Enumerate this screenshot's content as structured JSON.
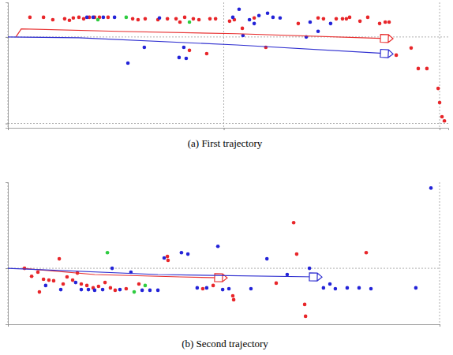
{
  "chart_data": [
    {
      "type": "scatter",
      "title": "(a) First trajectory",
      "xlim": [
        0,
        20.4
      ],
      "ylim": [
        -4.2,
        1.6
      ],
      "xticks": [
        0,
        10,
        20
      ],
      "yticks": [
        -4,
        0
      ],
      "grid": true,
      "tick_labels": false,
      "series": [
        {
          "type": "scatter",
          "color": "#e8262a",
          "marker": "circle",
          "x": [
            1.02,
            1.65,
            2.08,
            2.63,
            2.85,
            3.03,
            3.29,
            3.51,
            3.77,
            4.02,
            4.24,
            4.64,
            5.78,
            6.03,
            6.36,
            6.95,
            7.39,
            7.79,
            7.97,
            8.19,
            8.59,
            8.85,
            9.36,
            9.62,
            10.27,
            10.49,
            10.86,
            11.41,
            11.95,
            13.45,
            14.37,
            14.62,
            15.21,
            15.5,
            15.68,
            15.83,
            16.31,
            16.67,
            17.22,
            17.48,
            17.66,
            17.99,
            18.68,
            19.01,
            19.41,
            19.93,
            20.0,
            20.11,
            20.22,
            9.21,
            8.41
          ],
          "values": [
            0.91,
            0.91,
            0.8,
            0.84,
            0.77,
            0.88,
            0.91,
            0.84,
            0.91,
            0.91,
            0.91,
            0.91,
            0.84,
            0.8,
            0.84,
            0.8,
            0.84,
            0.84,
            0.69,
            0.91,
            0.84,
            0.8,
            0.84,
            0.84,
            0.73,
            0.8,
            0.4,
            0.88,
            -0.48,
            0.62,
            0.88,
            0.84,
            0.84,
            0.84,
            0.84,
            0.91,
            0.73,
            0.91,
            0.62,
            0.69,
            0.69,
            -0.84,
            -0.51,
            -1.46,
            -1.46,
            -2.38,
            -3.03,
            -3.69,
            -3.88,
            -0.77,
            -0.62
          ]
        },
        {
          "type": "scatter",
          "color": "#2323d8",
          "marker": "circle",
          "x": [
            3.66,
            3.95,
            4.42,
            4.94,
            5.56,
            6.32,
            7.02,
            7.93,
            8.26,
            8.15,
            10.42,
            10.71,
            11.19,
            11.41,
            11.63,
            12.03,
            12.28,
            13.82,
            14.0,
            14.37,
            14.95,
            12.61,
            10.89
          ],
          "values": [
            0.91,
            0.91,
            0.91,
            0.91,
            -1.21,
            -0.48,
            0.88,
            -0.95,
            -0.99,
            -0.48,
            0.91,
            1.28,
            0.8,
            0.62,
            0.99,
            1.1,
            0.91,
            0,
            0.69,
            0.26,
            0.62,
            0.88,
            0.07
          ]
        },
        {
          "type": "scatter",
          "color": "#2ecc40",
          "marker": "circle",
          "x": [
            4.17,
            5.48,
            8.41
          ],
          "values": [
            0.8,
            0.91,
            0.69
          ]
        },
        {
          "type": "line",
          "color": "#e83030",
          "marker": "arrow",
          "line_style": "solid",
          "x": [
            0.37,
            0.62,
            5.12,
            10.6,
            17.55
          ],
          "values": [
            0,
            0.37,
            0.26,
            0.15,
            -0.07
          ]
        },
        {
          "type": "line",
          "color": "#3030d0",
          "marker": "arrow",
          "line_style": "solid",
          "x": [
            0,
            3.29,
            10.6,
            17.55
          ],
          "values": [
            0,
            -0.04,
            -0.37,
            -0.77
          ]
        }
      ]
    },
    {
      "type": "scatter",
      "title": "(b) Second trajectory",
      "xlim": [
        0,
        20
      ],
      "ylim": [
        -2.6,
        4
      ],
      "xticks": [
        0,
        20
      ],
      "yticks": [
        0
      ],
      "grid": true,
      "tick_labels": false,
      "series": [
        {
          "type": "scatter",
          "color": "#e8262a",
          "marker": "circle",
          "x": [
            0.77,
            1.1,
            1.39,
            1.65,
            1.9,
            2.12,
            2.38,
            2.56,
            2.74,
            3.0,
            3.22,
            3.4,
            3.66,
            3.95,
            4.2,
            4.5,
            4.75,
            4.97,
            5.48,
            6.07,
            7.39,
            7.42,
            9.03,
            9.51,
            10.42,
            10.46,
            12.43,
            13.24,
            13.38,
            13.75,
            13.79,
            16.6,
            1.46
          ],
          "values": [
            0,
            -0.37,
            -0.18,
            -0.51,
            -0.55,
            -0.58,
            0.44,
            -0.73,
            -0.4,
            -0.55,
            -0.22,
            -0.73,
            -0.8,
            -0.91,
            -0.84,
            -0.66,
            -0.91,
            -1.02,
            -0.95,
            -0.73,
            0.55,
            0.37,
            -0.95,
            -0.8,
            -1.28,
            -1.46,
            -0.69,
            2.12,
            0.66,
            -1.68,
            -2.23,
            0.73,
            -1.1
          ]
        },
        {
          "type": "scatter",
          "color": "#2323d8",
          "marker": "circle",
          "x": [
            1.75,
            2.45,
            3.14,
            3.4,
            3.73,
            4.02,
            4.39,
            4.83,
            5.19,
            5.7,
            6.22,
            6.58,
            6.95,
            7.24,
            8.04,
            8.34,
            8.77,
            9.21,
            9.73,
            9.95,
            10.24,
            11.26,
            12.0,
            12.94,
            14.62,
            14.92,
            15.17,
            15.72,
            16.27,
            16.82,
            18.9,
            19.6,
            13.97
          ],
          "values": [
            -0.8,
            -0.99,
            -0.66,
            -0.99,
            -0.99,
            -1.02,
            -0.99,
            0,
            -0.99,
            -0.18,
            -1.02,
            -1.02,
            -1.02,
            0.48,
            0.73,
            0.66,
            -0.91,
            -0.91,
            1.02,
            -0.99,
            -0.95,
            -0.95,
            0.44,
            -0.29,
            -0.91,
            -0.73,
            -0.95,
            -0.91,
            -0.91,
            -0.95,
            -0.91,
            3.73,
            0
          ]
        },
        {
          "type": "scatter",
          "color": "#2ecc40",
          "marker": "circle",
          "x": [
            4.61,
            5.85,
            6.36
          ],
          "values": [
            0.73,
            -1.1,
            -0.8
          ]
        },
        {
          "type": "line",
          "color": "#e83030",
          "marker": "arrow",
          "line_style": "solid",
          "x": [
            0.66,
            4.02,
            7.97,
            9.87
          ],
          "values": [
            0,
            -0.29,
            -0.4,
            -0.44
          ]
        },
        {
          "type": "line",
          "color": "#3030d0",
          "marker": "arrow",
          "line_style": "solid",
          "x": [
            0,
            6.95,
            14.26
          ],
          "values": [
            0,
            -0.29,
            -0.4
          ]
        }
      ]
    }
  ]
}
